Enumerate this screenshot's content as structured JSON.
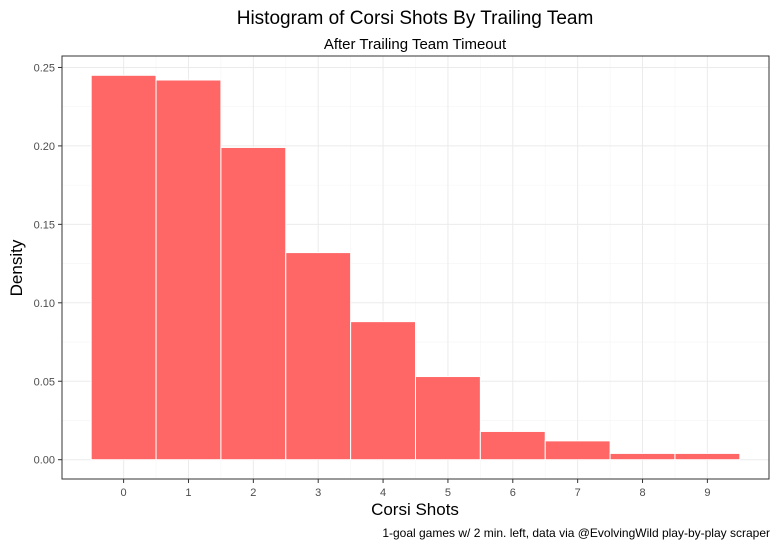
{
  "chart_data": {
    "type": "bar",
    "title": "Histogram of Corsi Shots By Trailing Team",
    "subtitle": "After Trailing Team Timeout",
    "xlabel": "Corsi Shots",
    "ylabel": "Density",
    "caption": "1-goal games w/ 2 min. left, data via @EvolvingWild play-by-play scraper",
    "categories": [
      "0",
      "1",
      "2",
      "3",
      "4",
      "5",
      "6",
      "7",
      "8",
      "9"
    ],
    "values": [
      0.245,
      0.242,
      0.199,
      0.132,
      0.088,
      0.053,
      0.018,
      0.012,
      0.004,
      0.004
    ],
    "x_ticks": [
      "0",
      "1",
      "2",
      "3",
      "4",
      "5",
      "6",
      "7",
      "8",
      "9"
    ],
    "y_ticks": [
      "0.00",
      "0.05",
      "0.10",
      "0.15",
      "0.20",
      "0.25"
    ],
    "y_tick_values": [
      0,
      0.05,
      0.1,
      0.15,
      0.2,
      0.25
    ],
    "xlim": [
      -0.95,
      9.95
    ],
    "ylim": [
      -0.0123,
      0.2573
    ],
    "grid": true,
    "bar_color": "#ff6666",
    "bar_edge_color": "#ffffff",
    "grid_color": "#ebebeb",
    "panel_border_color": "#333333"
  }
}
